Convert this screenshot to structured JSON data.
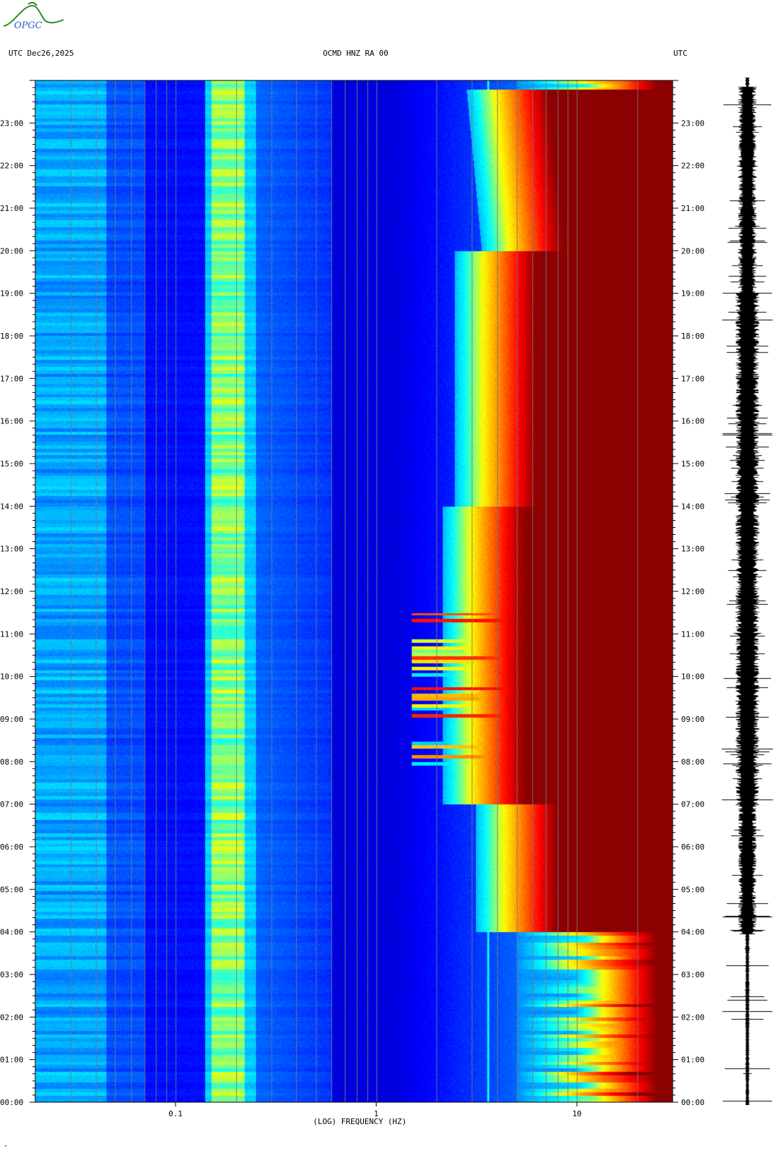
{
  "header": {
    "left": "UTC  Dec26,2025",
    "center": "OCMD HNZ RA 00",
    "right": "UTC"
  },
  "logo": {
    "text": "OPGC"
  },
  "chart_data": {
    "type": "heatmap",
    "title": "OCMD HNZ RA 00",
    "date": "Dec26,2025",
    "xlabel": "(LOG) FREQUENCY (HZ)",
    "x_scale": "log",
    "xlim": [
      0.02,
      30
    ],
    "x_ticks": [
      {
        "value": 0.1,
        "label": "0.1"
      },
      {
        "value": 1,
        "label": "1"
      },
      {
        "value": 10,
        "label": "10"
      }
    ],
    "ylabel": "UTC",
    "ylim_hours": [
      0,
      24
    ],
    "y_tick_labels": [
      "00:00",
      "01:00",
      "02:00",
      "03:00",
      "04:00",
      "05:00",
      "06:00",
      "07:00",
      "08:00",
      "09:00",
      "10:00",
      "11:00",
      "12:00",
      "13:00",
      "14:00",
      "15:00",
      "16:00",
      "17:00",
      "18:00",
      "19:00",
      "20:00",
      "21:00",
      "22:00",
      "23:00"
    ],
    "colormap": [
      "#00008b",
      "#0000ff",
      "#0080ff",
      "#00ffff",
      "#ffff00",
      "#ff8000",
      "#ff0000",
      "#8b0000"
    ],
    "microseism_band_hz": [
      0.15,
      0.22
    ],
    "persistent_line_hz": 3.6,
    "cultural_noise_onset_hour": 4,
    "cultural_noise_end_hour": 23.8,
    "activity_burst_hours": [
      7.5,
      11.5
    ]
  },
  "footer": {
    "mark": "\""
  }
}
